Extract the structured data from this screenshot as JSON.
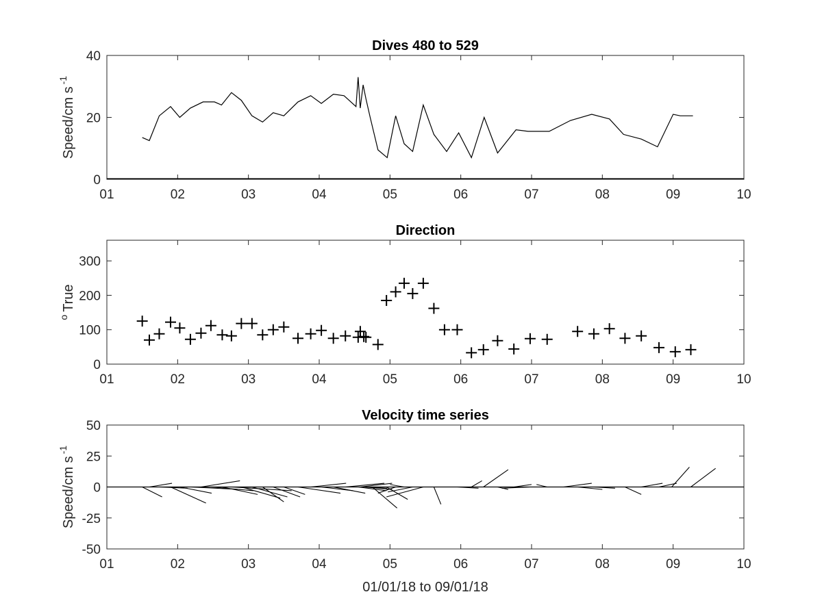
{
  "chart_data": [
    {
      "type": "line",
      "title": "Dives 480 to 529",
      "ylabel": "Speed/cm s",
      "ylabel_superscript": "-1",
      "xlim": [
        1,
        10
      ],
      "ylim": [
        0,
        40
      ],
      "xticks": [
        1,
        2,
        3,
        4,
        5,
        6,
        7,
        8,
        9,
        10
      ],
      "xtick_labels": [
        "01",
        "02",
        "03",
        "04",
        "05",
        "06",
        "07",
        "08",
        "09",
        "10"
      ],
      "yticks": [
        0,
        20,
        40
      ],
      "ytick_labels": [
        "0",
        "20",
        "40"
      ],
      "series": [
        {
          "x": [
            1.5,
            1.6,
            1.74,
            1.9,
            2.03,
            2.18,
            2.36,
            2.52,
            2.62,
            2.76,
            2.9,
            3.05,
            3.2,
            3.35,
            3.5,
            3.7,
            3.88,
            4.03,
            4.2,
            4.35,
            4.52,
            4.55,
            4.58,
            4.62,
            4.66,
            4.72,
            4.83,
            4.96,
            5.08,
            5.2,
            5.32,
            5.47,
            5.62,
            5.8,
            5.97,
            6.15,
            6.33,
            6.52,
            6.78,
            6.95,
            7.25,
            7.55,
            7.85,
            8.1,
            8.3,
            8.55,
            8.78,
            9.0,
            9.1,
            9.28
          ],
          "y": [
            13.5,
            12.5,
            20.5,
            23.5,
            20.0,
            23.0,
            25.0,
            25.0,
            24.0,
            28.0,
            25.5,
            20.5,
            18.5,
            21.5,
            20.5,
            25.0,
            27.0,
            24.5,
            27.5,
            27.0,
            23.5,
            33.0,
            23.0,
            30.5,
            26.0,
            20.0,
            9.5,
            7.0,
            20.5,
            11.5,
            9.0,
            24.0,
            14.5,
            9.0,
            15.0,
            7.0,
            20.0,
            8.5,
            16.0,
            15.5,
            15.5,
            19.0,
            21.0,
            19.5,
            14.5,
            13.0,
            10.5,
            21.0,
            20.5,
            20.5
          ]
        }
      ]
    },
    {
      "type": "scatter",
      "title": "Direction",
      "ylabel": "True",
      "ylabel_superscript": "o",
      "xlim": [
        1,
        10
      ],
      "ylim": [
        0,
        360
      ],
      "xticks": [
        1,
        2,
        3,
        4,
        5,
        6,
        7,
        8,
        9,
        10
      ],
      "xtick_labels": [
        "01",
        "02",
        "03",
        "04",
        "05",
        "06",
        "07",
        "08",
        "09",
        "10"
      ],
      "yticks": [
        0,
        100,
        200,
        300
      ],
      "ytick_labels": [
        "0",
        "100",
        "200",
        "300"
      ],
      "series": [
        {
          "x": [
            1.5,
            1.6,
            1.74,
            1.9,
            2.03,
            2.18,
            2.33,
            2.47,
            2.63,
            2.76,
            2.9,
            3.05,
            3.2,
            3.35,
            3.5,
            3.7,
            3.88,
            4.03,
            4.2,
            4.37,
            4.55,
            4.58,
            4.63,
            4.66,
            4.83,
            4.95,
            5.08,
            5.2,
            5.32,
            5.47,
            5.62,
            5.77,
            5.95,
            6.15,
            6.32,
            6.52,
            6.75,
            6.98,
            7.22,
            7.65,
            7.88,
            8.1,
            8.32,
            8.55,
            8.8,
            9.03,
            9.25
          ],
          "y": [
            125,
            70,
            88,
            122,
            105,
            72,
            90,
            112,
            85,
            82,
            118,
            118,
            85,
            100,
            108,
            75,
            88,
            98,
            75,
            82,
            78,
            95,
            80,
            78,
            57,
            185,
            210,
            235,
            205,
            235,
            162,
            100,
            100,
            33,
            42,
            68,
            44,
            74,
            72,
            95,
            88,
            103,
            75,
            82,
            48,
            36,
            42
          ]
        }
      ]
    },
    {
      "type": "quiver",
      "title": "Velocity time series",
      "ylabel": "Speed/cm s",
      "ylabel_superscript": "-1",
      "xlabel": "01/01/18 to 09/01/18",
      "xlim": [
        1,
        10
      ],
      "ylim": [
        -50,
        50
      ],
      "xticks": [
        1,
        2,
        3,
        4,
        5,
        6,
        7,
        8,
        9,
        10
      ],
      "xtick_labels": [
        "01",
        "02",
        "03",
        "04",
        "05",
        "06",
        "07",
        "08",
        "09",
        "10"
      ],
      "yticks": [
        -50,
        -25,
        0,
        25,
        50
      ],
      "ytick_labels": [
        "-50",
        "-25",
        "0",
        "25",
        "50"
      ],
      "sticks": [
        {
          "x": 1.5,
          "dx": 0.28,
          "dy": -8
        },
        {
          "x": 1.6,
          "dx": 0.32,
          "dy": 3
        },
        {
          "x": 1.74,
          "dx": 0.4,
          "dy": -1
        },
        {
          "x": 1.9,
          "dx": 0.5,
          "dy": -13
        },
        {
          "x": 2.03,
          "dx": 0.45,
          "dy": -5
        },
        {
          "x": 2.18,
          "dx": 0.7,
          "dy": -2
        },
        {
          "x": 2.33,
          "dx": 0.55,
          "dy": 5
        },
        {
          "x": 2.47,
          "dx": 0.6,
          "dy": -3
        },
        {
          "x": 2.63,
          "dx": 0.5,
          "dy": -6
        },
        {
          "x": 2.76,
          "dx": 0.85,
          "dy": -3
        },
        {
          "x": 2.9,
          "dx": 0.55,
          "dy": -9
        },
        {
          "x": 3.05,
          "dx": 0.5,
          "dy": -8
        },
        {
          "x": 3.2,
          "dx": 0.3,
          "dy": -12
        },
        {
          "x": 3.35,
          "dx": 0.38,
          "dy": -8
        },
        {
          "x": 3.5,
          "dx": 0.3,
          "dy": -6
        },
        {
          "x": 3.7,
          "dx": 0.6,
          "dy": -5
        },
        {
          "x": 3.88,
          "dx": 0.5,
          "dy": 3
        },
        {
          "x": 4.03,
          "dx": 0.45,
          "dy": -3
        },
        {
          "x": 4.2,
          "dx": 0.45,
          "dy": -5
        },
        {
          "x": 4.37,
          "dx": 0.55,
          "dy": 3
        },
        {
          "x": 4.55,
          "dx": 0.4,
          "dy": -3
        },
        {
          "x": 4.58,
          "dx": 0.45,
          "dy": 3
        },
        {
          "x": 4.63,
          "dx": 0.4,
          "dy": -2
        },
        {
          "x": 4.66,
          "dx": 0.3,
          "dy": -1
        },
        {
          "x": 4.75,
          "dx": 0.35,
          "dy": -17
        },
        {
          "x": 4.95,
          "dx": 0.3,
          "dy": -10
        },
        {
          "x": 5.08,
          "dx": -0.25,
          "dy": -5
        },
        {
          "x": 5.2,
          "dx": -0.2,
          "dy": 2
        },
        {
          "x": 5.32,
          "dx": -0.35,
          "dy": -4
        },
        {
          "x": 5.47,
          "dx": -0.52,
          "dy": -8
        },
        {
          "x": 5.62,
          "dx": 0.1,
          "dy": -14
        },
        {
          "x": 5.77,
          "dx": 0.3,
          "dy": 0
        },
        {
          "x": 5.95,
          "dx": 0.3,
          "dy": -1
        },
        {
          "x": 6.15,
          "dx": 0.15,
          "dy": 5
        },
        {
          "x": 6.32,
          "dx": 0.35,
          "dy": 14
        },
        {
          "x": 6.52,
          "dx": 0.15,
          "dy": -2
        },
        {
          "x": 6.75,
          "dx": 0.25,
          "dy": 2
        },
        {
          "x": 6.98,
          "dx": -0.4,
          "dy": -1
        },
        {
          "x": 7.22,
          "dx": -0.15,
          "dy": 2
        },
        {
          "x": 7.45,
          "dx": 0.4,
          "dy": 3
        },
        {
          "x": 7.65,
          "dx": 0.35,
          "dy": -2
        },
        {
          "x": 7.88,
          "dx": 0.3,
          "dy": -1
        },
        {
          "x": 8.1,
          "dx": 0.2,
          "dy": 0
        },
        {
          "x": 8.32,
          "dx": 0.23,
          "dy": -6
        },
        {
          "x": 8.55,
          "dx": 0.3,
          "dy": 3
        },
        {
          "x": 8.8,
          "dx": 0.25,
          "dy": 3
        },
        {
          "x": 8.98,
          "dx": 0.25,
          "dy": 16
        },
        {
          "x": 9.25,
          "dx": 0.35,
          "dy": 15
        }
      ]
    }
  ]
}
